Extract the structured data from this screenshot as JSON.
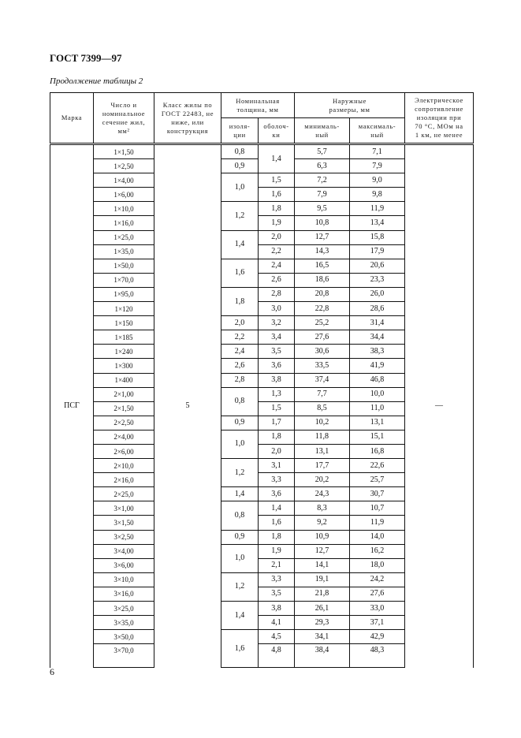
{
  "document": {
    "title": "ГОСТ 7399—97",
    "caption": "Продолжение таблицы 2",
    "page_number": "6"
  },
  "table": {
    "headers": {
      "mark": "Марка",
      "cores": "Число и\nноминальное\nсечение жил,\nмм²",
      "class": "Класс жилы по\nГОСТ 22483, не\nниже, или\nконструкция",
      "thickness": "Номинальная\nтолщина, мм",
      "insulation": "изоля-\nции",
      "sheath": "оболоч-\nки",
      "outer": "Наружные\nразмеры, мм",
      "min": "минималь-\nный",
      "max": "максималь-\nный",
      "resistance": "Электрическое\nсопротивление\nизоляции при\n70 °С, МОм на\n1 км, не менее"
    },
    "mark": "ПСГ",
    "class": "5",
    "resistance": "—",
    "rows": [
      [
        "1×1,50",
        "0,8",
        "1,4",
        "5,7",
        "7,1"
      ],
      [
        "1×2,50",
        "0,9",
        null,
        "6,3",
        "7,9"
      ],
      [
        "1×4,00",
        "1,0",
        "1,5",
        "7,2",
        "9,0"
      ],
      [
        "1×6,00",
        null,
        "1,6",
        "7,9",
        "9,8"
      ],
      [
        "1×10,0",
        "1,2",
        "1,8",
        "9,5",
        "11,9"
      ],
      [
        "1×16,0",
        null,
        "1,9",
        "10,8",
        "13,4"
      ],
      [
        "1×25,0",
        "1,4",
        "2,0",
        "12,7",
        "15,8"
      ],
      [
        "1×35,0",
        null,
        "2,2",
        "14,3",
        "17,9"
      ],
      [
        "1×50,0",
        "1,6",
        "2,4",
        "16,5",
        "20,6"
      ],
      [
        "1×70,0",
        null,
        "2,6",
        "18,6",
        "23,3"
      ],
      [
        "1×95,0",
        "1,8",
        "2,8",
        "20,8",
        "26,0"
      ],
      [
        "1×120",
        null,
        "3,0",
        "22,8",
        "28,6"
      ],
      [
        "1×150",
        "2,0",
        "3,2",
        "25,2",
        "31,4"
      ],
      [
        "1×185",
        "2,2",
        "3,4",
        "27,6",
        "34,4"
      ],
      [
        "1×240",
        "2,4",
        "3,5",
        "30,6",
        "38,3"
      ],
      [
        "1×300",
        "2,6",
        "3,6",
        "33,5",
        "41,9"
      ],
      [
        "1×400",
        "2,8",
        "3,8",
        "37,4",
        "46,8"
      ],
      [
        "2×1,00",
        "0,8",
        "1,3",
        "7,7",
        "10,0"
      ],
      [
        "2×1,50",
        null,
        "1,5",
        "8,5",
        "11,0"
      ],
      [
        "2×2,50",
        "0,9",
        "1,7",
        "10,2",
        "13,1"
      ],
      [
        "2×4,00",
        "1,0",
        "1,8",
        "11,8",
        "15,1"
      ],
      [
        "2×6,00",
        null,
        "2,0",
        "13,1",
        "16,8"
      ],
      [
        "2×10,0",
        "1,2",
        "3,1",
        "17,7",
        "22,6"
      ],
      [
        "2×16,0",
        null,
        "3,3",
        "20,2",
        "25,7"
      ],
      [
        "2×25,0",
        "1,4",
        "3,6",
        "24,3",
        "30,7"
      ],
      [
        "3×1,00",
        "0,8",
        "1,4",
        "8,3",
        "10,7"
      ],
      [
        "3×1,50",
        null,
        "1,6",
        "9,2",
        "11,9"
      ],
      [
        "3×2,50",
        "0,9",
        "1,8",
        "10,9",
        "14,0"
      ],
      [
        "3×4,00",
        "1,0",
        "1,9",
        "12,7",
        "16,2"
      ],
      [
        "3×6,00",
        null,
        "2,1",
        "14,1",
        "18,0"
      ],
      [
        "3×10,0",
        "1,2",
        "3,3",
        "19,1",
        "24,2"
      ],
      [
        "3×16,0",
        null,
        "3,5",
        "21,8",
        "27,6"
      ],
      [
        "3×25,0",
        "1,4",
        "3,8",
        "26,1",
        "33,0"
      ],
      [
        "3×35,0",
        null,
        "4,1",
        "29,3",
        "37,1"
      ],
      [
        "3×50,0",
        "1,6",
        "4,5",
        "34,1",
        "42,9"
      ],
      [
        "3×70,0",
        null,
        "4,8",
        "38,4",
        "48,3"
      ]
    ]
  }
}
